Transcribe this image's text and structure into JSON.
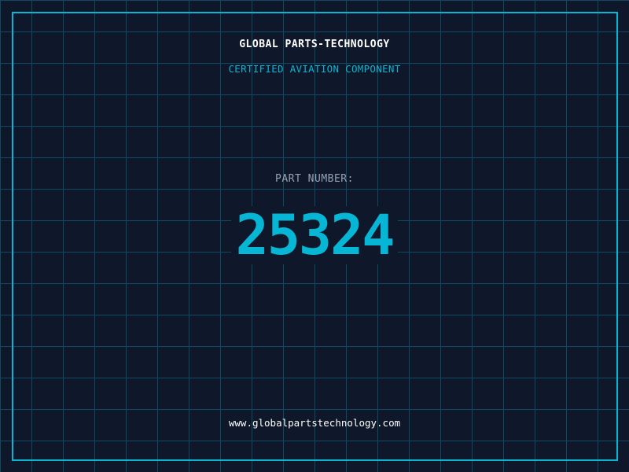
{
  "header": {
    "title": "GLOBAL PARTS-TECHNOLOGY",
    "subtitle": "CERTIFIED AVIATION COMPONENT"
  },
  "part": {
    "label": "PART NUMBER:",
    "number": "25324"
  },
  "footer": {
    "url": "www.globalpartstechnology.com"
  },
  "colors": {
    "accent": "#06b6d4",
    "background": "#0f172a",
    "grid": "#0e4a5e"
  }
}
